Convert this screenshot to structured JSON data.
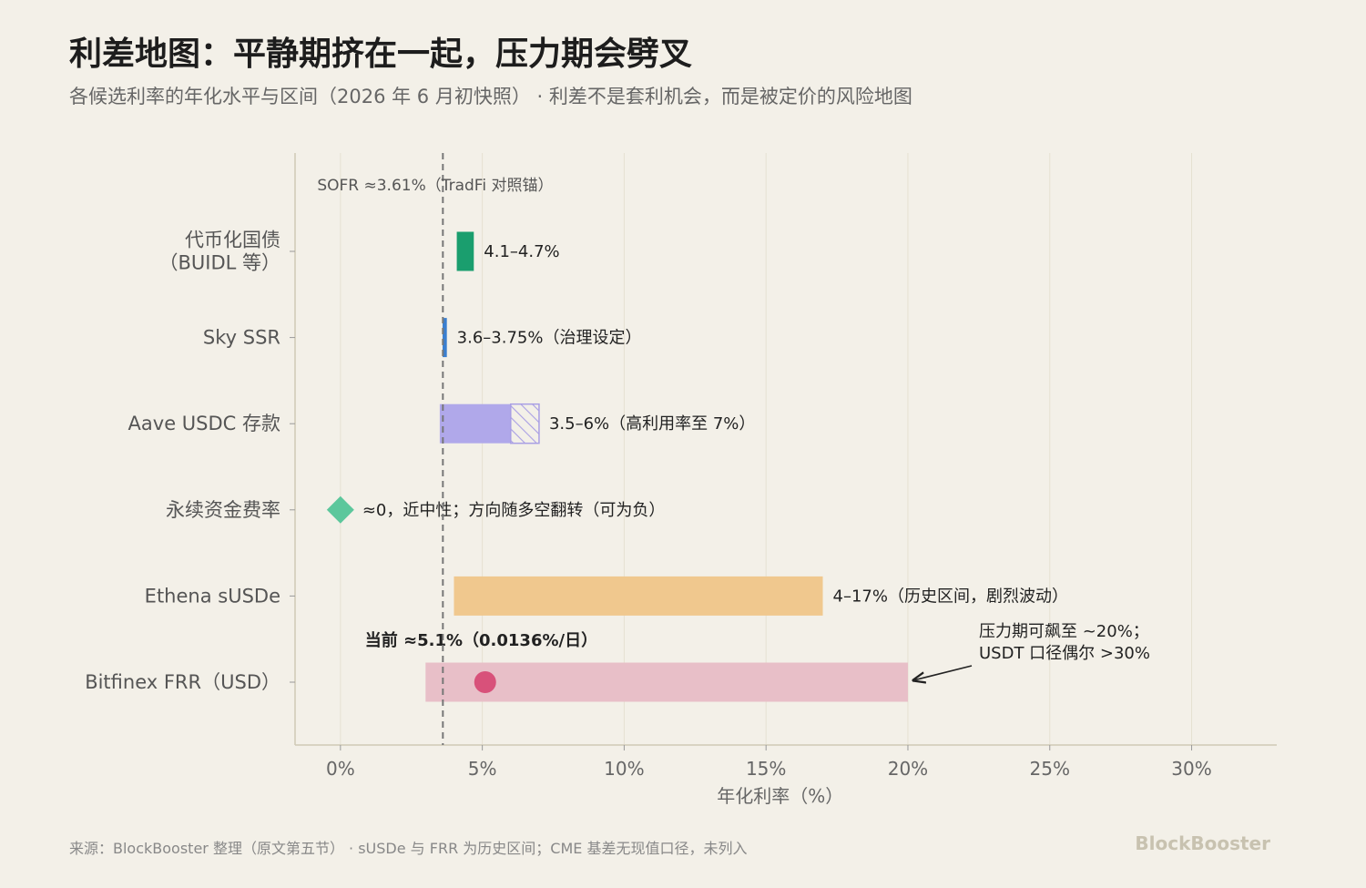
{
  "title": "利差地图：平静期挤在一起，压力期会劈叉",
  "subtitle": "各候选利率的年化水平与区间（2026 年 6 月初快照） · 利差不是套利机会，而是被定价的风险地图",
  "footer": "来源：BlockBooster 整理（原文第五节） · sUSDe 与 FRR 为历史区间；CME 基差无现值口径，未列入",
  "brand": "BlockBooster",
  "chart_data": {
    "type": "range-bar",
    "title": "利差地图：平静期挤在一起，压力期会劈叉",
    "subtitle": "各候选利率的年化水平与区间（2026 年 6 月初快照） · 利差不是套利机会，而是被定价的风险地图",
    "xlabel": "年化利率（%）",
    "xlim": [
      -1.6,
      33
    ],
    "xticks": [
      0,
      5,
      10,
      15,
      20,
      25,
      30
    ],
    "xtick_labels": [
      "0%",
      "5%",
      "10%",
      "15%",
      "20%",
      "25%",
      "30%"
    ],
    "grid": true,
    "reference_line": {
      "value": 3.61,
      "label": "SOFR ≈3.61%（TradFi 对照锚）"
    },
    "categories": [
      {
        "label_lines": [
          "代币化国债",
          "（BUIDL 等）"
        ],
        "low": 4.1,
        "high": 4.7,
        "color": "#1a9e6e",
        "annotation": "4.1–4.7%"
      },
      {
        "label_lines": [
          "Sky SSR"
        ],
        "low": 3.6,
        "high": 3.75,
        "color": "#3a7fd0",
        "annotation": "3.6–3.75%（治理设定）"
      },
      {
        "label_lines": [
          "Aave USDC 存款"
        ],
        "low": 3.5,
        "high": 6,
        "extended_high": 7,
        "color": "#b0a8ea",
        "annotation": "3.5–6%（高利用率至 7%）"
      },
      {
        "label_lines": [
          "永续资金费率"
        ],
        "point": 0,
        "marker": "diamond",
        "color": "#5cc79c",
        "annotation": "≈0，近中性；方向随多空翻转（可为负）"
      },
      {
        "label_lines": [
          "Ethena sUSDe"
        ],
        "low": 4,
        "high": 17,
        "color": "#f0c88e",
        "annotation": "4–17%（历史区间，剧烈波动）"
      },
      {
        "label_lines": [
          "Bitfinex FRR（USD）"
        ],
        "low": 3,
        "high": 20,
        "color": "#e8bfc8",
        "current": 5.1,
        "current_color": "#d8517a",
        "current_label": "当前 ≈5.1%（0.0136%/日）",
        "stress_note": [
          "压力期可飙至 ~20%；",
          "USDT 口径偶尔 >30%"
        ]
      }
    ]
  }
}
